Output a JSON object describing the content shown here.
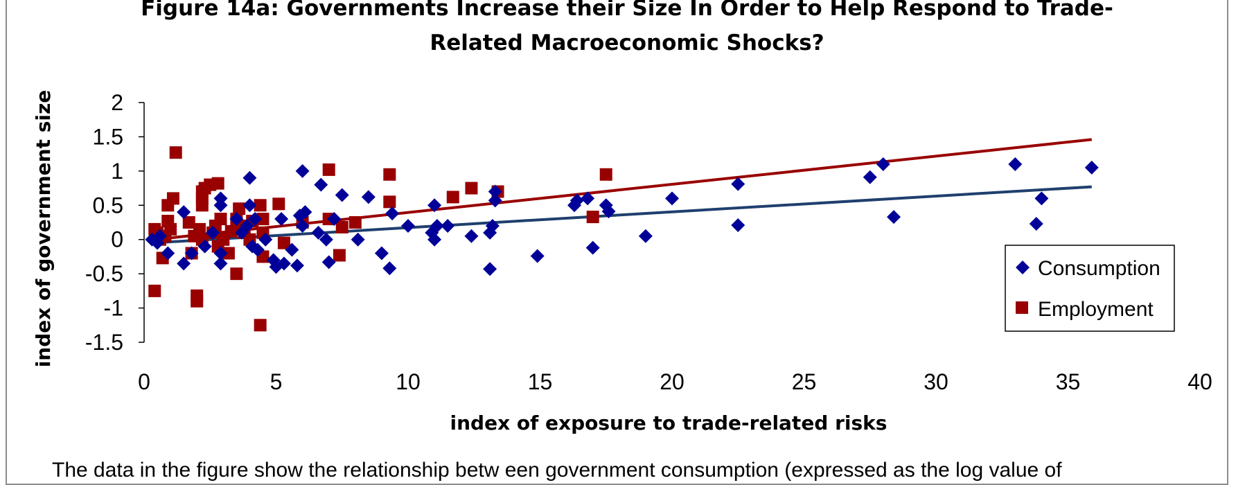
{
  "chart_data": {
    "type": "scatter",
    "title": "Figure 14a: Governments Increase their Size In Order to Help Respond to Trade-\nRelated Macroeconomic Shocks?",
    "xlabel": "index of exposure to trade-related risks",
    "ylabel": "index of government size",
    "xlim": [
      0,
      40
    ],
    "ylim": [
      -1.5,
      2
    ],
    "xticks": [
      0,
      5,
      10,
      15,
      20,
      25,
      30,
      35,
      40
    ],
    "yticks": [
      -1.5,
      -1,
      -0.5,
      0,
      0.5,
      1,
      1.5,
      2
    ],
    "grid": false,
    "legend_position": "right",
    "series": [
      {
        "name": "Consumption",
        "marker": "diamond",
        "color": "#000099",
        "points": [
          [
            0.3,
            0.0
          ],
          [
            0.5,
            -0.05
          ],
          [
            0.6,
            0.05
          ],
          [
            0.9,
            -0.2
          ],
          [
            1.5,
            -0.35
          ],
          [
            1.5,
            0.4
          ],
          [
            1.8,
            -0.2
          ],
          [
            2.3,
            -0.1
          ],
          [
            2.6,
            0.1
          ],
          [
            2.9,
            0.6
          ],
          [
            2.9,
            0.5
          ],
          [
            2.9,
            -0.35
          ],
          [
            2.9,
            -0.2
          ],
          [
            3.5,
            0.3
          ],
          [
            3.7,
            0.1
          ],
          [
            3.9,
            0.2
          ],
          [
            4.0,
            0.9
          ],
          [
            4.0,
            0.5
          ],
          [
            4.1,
            -0.1
          ],
          [
            4.2,
            0.3
          ],
          [
            4.3,
            -0.15
          ],
          [
            4.6,
            0.0
          ],
          [
            4.9,
            -0.3
          ],
          [
            5.0,
            -0.4
          ],
          [
            5.2,
            0.3
          ],
          [
            5.3,
            -0.35
          ],
          [
            5.6,
            -0.15
          ],
          [
            5.8,
            -0.38
          ],
          [
            5.9,
            0.35
          ],
          [
            6.0,
            0.2
          ],
          [
            6.0,
            1.0
          ],
          [
            6.1,
            0.4
          ],
          [
            6.6,
            0.1
          ],
          [
            6.7,
            0.8
          ],
          [
            6.9,
            0.0
          ],
          [
            7.0,
            -0.33
          ],
          [
            7.2,
            0.3
          ],
          [
            7.5,
            0.65
          ],
          [
            8.1,
            0.0
          ],
          [
            8.5,
            0.62
          ],
          [
            9.0,
            -0.2
          ],
          [
            9.3,
            -0.42
          ],
          [
            9.4,
            0.38
          ],
          [
            10.0,
            0.2
          ],
          [
            10.9,
            0.1
          ],
          [
            11.0,
            0.5
          ],
          [
            11.0,
            0.0
          ],
          [
            11.1,
            0.2
          ],
          [
            11.5,
            0.2
          ],
          [
            12.4,
            0.05
          ],
          [
            13.1,
            -0.43
          ],
          [
            13.1,
            0.1
          ],
          [
            13.2,
            0.2
          ],
          [
            13.3,
            0.7
          ],
          [
            13.3,
            0.57
          ],
          [
            14.9,
            -0.24
          ],
          [
            16.3,
            0.5
          ],
          [
            16.4,
            0.57
          ],
          [
            16.8,
            0.6
          ],
          [
            17.0,
            -0.12
          ],
          [
            17.5,
            0.5
          ],
          [
            17.6,
            0.41
          ],
          [
            19.0,
            0.05
          ],
          [
            20.0,
            0.6
          ],
          [
            22.5,
            0.21
          ],
          [
            22.5,
            0.81
          ],
          [
            27.5,
            0.91
          ],
          [
            28.0,
            1.1
          ],
          [
            28.4,
            0.33
          ],
          [
            33.0,
            1.1
          ],
          [
            33.8,
            0.23
          ],
          [
            34.0,
            0.6
          ],
          [
            35.9,
            1.05
          ]
        ],
        "trendline": [
          [
            0.3,
            -0.05
          ],
          [
            35.9,
            0.77
          ]
        ]
      },
      {
        "name": "Employment",
        "marker": "square",
        "color": "#990000",
        "points": [
          [
            0.4,
            -0.75
          ],
          [
            0.4,
            0.15
          ],
          [
            0.5,
            0.1
          ],
          [
            0.6,
            0.0
          ],
          [
            0.7,
            -0.27
          ],
          [
            0.8,
            0.05
          ],
          [
            0.9,
            0.27
          ],
          [
            0.9,
            0.5
          ],
          [
            1.0,
            0.15
          ],
          [
            1.1,
            0.6
          ],
          [
            1.2,
            1.27
          ],
          [
            1.7,
            0.25
          ],
          [
            1.8,
            -0.2
          ],
          [
            1.9,
            0.05
          ],
          [
            2.0,
            -0.82
          ],
          [
            2.0,
            -0.9
          ],
          [
            2.1,
            0.15
          ],
          [
            2.2,
            0.0
          ],
          [
            2.2,
            0.7
          ],
          [
            2.2,
            0.6
          ],
          [
            2.2,
            0.5
          ],
          [
            2.3,
            0.75
          ],
          [
            2.5,
            0.8
          ],
          [
            2.6,
            0.1
          ],
          [
            2.7,
            0.2
          ],
          [
            2.8,
            -0.1
          ],
          [
            2.8,
            0.82
          ],
          [
            2.9,
            0.3
          ],
          [
            3.0,
            0.0
          ],
          [
            3.2,
            -0.2
          ],
          [
            3.3,
            0.12
          ],
          [
            3.5,
            0.3
          ],
          [
            3.5,
            -0.5
          ],
          [
            3.6,
            0.45
          ],
          [
            3.7,
            0.2
          ],
          [
            3.8,
            0.1
          ],
          [
            4.0,
            0.0
          ],
          [
            4.1,
            0.27
          ],
          [
            4.4,
            -1.25
          ],
          [
            4.4,
            0.5
          ],
          [
            4.5,
            -0.25
          ],
          [
            4.5,
            0.3
          ],
          [
            4.5,
            0.1
          ],
          [
            5.1,
            0.52
          ],
          [
            5.3,
            -0.05
          ],
          [
            6.0,
            0.25
          ],
          [
            7.0,
            1.02
          ],
          [
            7.0,
            0.3
          ],
          [
            7.4,
            -0.23
          ],
          [
            7.5,
            0.18
          ],
          [
            8.0,
            0.25
          ],
          [
            9.3,
            0.95
          ],
          [
            9.3,
            0.55
          ],
          [
            11.7,
            0.62
          ],
          [
            12.4,
            0.75
          ],
          [
            13.4,
            0.7
          ],
          [
            17.0,
            0.33
          ],
          [
            17.5,
            0.95
          ]
        ],
        "trendline": [
          [
            0.4,
            0.0
          ],
          [
            35.9,
            1.46
          ]
        ]
      }
    ]
  },
  "caption": "The data in the figure show  the relationship betw een government consumption (expressed as the log value of"
}
